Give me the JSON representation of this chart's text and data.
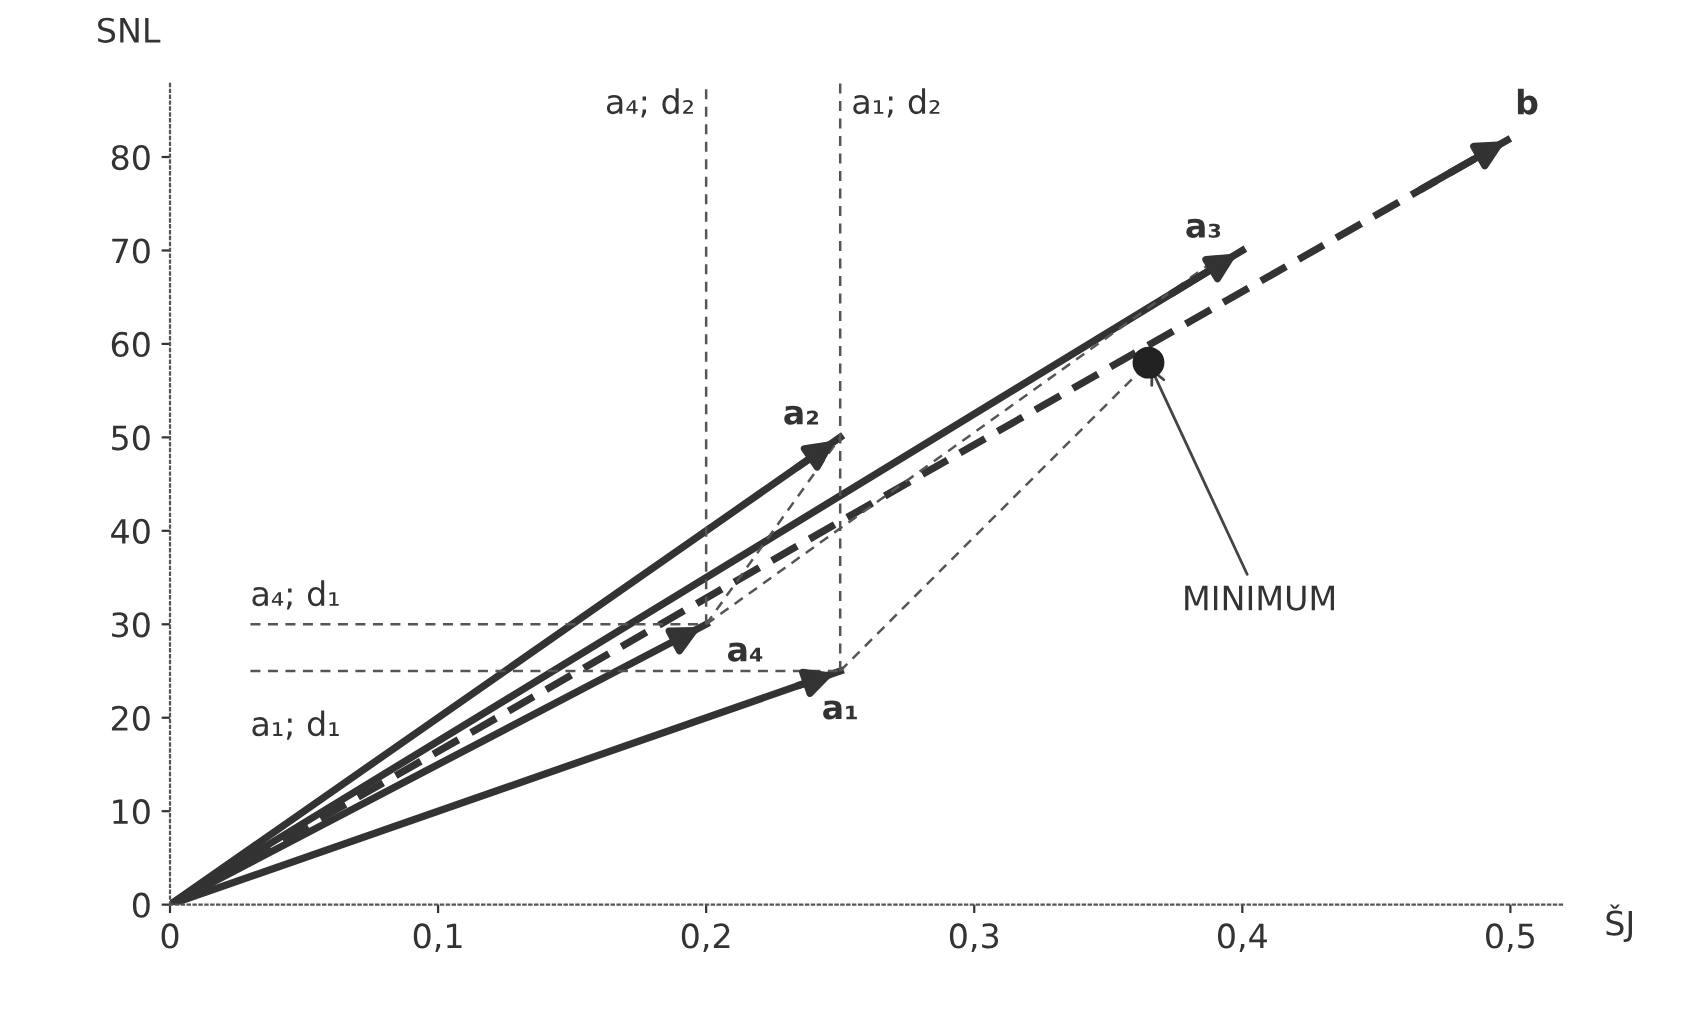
{
  "chart_data": {
    "type": "line",
    "xlabel": "ŠJ",
    "ylabel": "SNL",
    "xlim": [
      0,
      0.52
    ],
    "ylim": [
      0,
      88
    ],
    "xticks": [
      0,
      {
        "value": 0.1,
        "label": "0,1"
      },
      {
        "value": 0.2,
        "label": "0,2"
      },
      {
        "value": 0.3,
        "label": "0,3"
      },
      {
        "value": 0.4,
        "label": "0,4"
      },
      {
        "value": 0.5,
        "label": "0,5"
      }
    ],
    "yticks": [
      0,
      10,
      20,
      30,
      40,
      50,
      60,
      70,
      80
    ],
    "grid": false,
    "series": [
      {
        "name": "a₁",
        "color": "#333333",
        "x": [
          0,
          0.25
        ],
        "values": [
          0,
          25
        ],
        "line_style": "solid"
      },
      {
        "name": "a₂",
        "color": "#333333",
        "x": [
          0,
          0.25
        ],
        "values": [
          0,
          50
        ],
        "line_style": "solid"
      },
      {
        "name": "a₃",
        "color": "#333333",
        "x": [
          0,
          0.4
        ],
        "values": [
          0,
          70
        ],
        "line_style": "solid"
      },
      {
        "name": "a₄",
        "color": "#333333",
        "x": [
          0,
          0.2
        ],
        "values": [
          0,
          30
        ],
        "line_style": "solid"
      },
      {
        "name": "b",
        "color": "#333333",
        "x": [
          0,
          0.5
        ],
        "values": [
          0,
          82
        ],
        "line_style": "dashed"
      },
      {
        "color": "#555555",
        "x": [
          0.03,
          0.25
        ],
        "values": [
          25,
          25
        ],
        "line_style": "dashed"
      },
      {
        "color": "#555555",
        "x": [
          0.03,
          0.2
        ],
        "values": [
          30,
          30
        ],
        "line_style": "dashed"
      },
      {
        "color": "#555555",
        "x": [
          0.2,
          0.2
        ],
        "values": [
          30,
          88
        ],
        "line_style": "dashed"
      },
      {
        "color": "#555555",
        "x": [
          0.25,
          0.25
        ],
        "values": [
          25,
          88
        ],
        "line_style": "dashed"
      },
      {
        "color": "#555555",
        "x": [
          0.2,
          0.25
        ],
        "values": [
          30,
          50
        ],
        "line_style": "dashed"
      },
      {
        "color": "#555555",
        "x": [
          0.2,
          0.39
        ],
        "values": [
          30,
          69
        ],
        "line_style": "dashed"
      },
      {
        "color": "#555555",
        "x": [
          0.25,
          0.365
        ],
        "values": [
          25,
          58
        ],
        "line_style": "dashed"
      },
      {
        "type": "scatter",
        "color": "#222222",
        "x": [
          0.365
        ],
        "values": [
          58
        ],
        "marker": "circle"
      }
    ],
    "annotations": [
      {
        "text": "a₄; d₁",
        "x": 0.03,
        "y": 30
      },
      {
        "text": "a₁; d₁",
        "x": 0.03,
        "y": 25
      },
      {
        "text": "a₄; d₂",
        "x": 0.2,
        "y": 88
      },
      {
        "text": "a₁; d₂",
        "x": 0.25,
        "y": 88
      },
      {
        "text": "MINIMUM",
        "x": 0.365,
        "y": 58
      }
    ]
  }
}
